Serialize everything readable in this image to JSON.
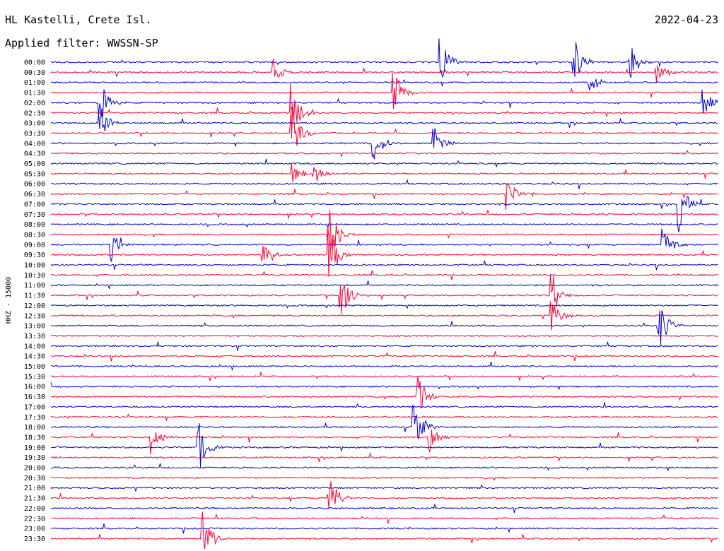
{
  "chart_data": {
    "type": "line",
    "title": "HL Kastelli, Crete Isl.",
    "subtitle": "Applied filter: WWSSN-SP",
    "date": "2022-04-23",
    "ylabel": "HHZ - 15000",
    "row_labels": [
      "00:00",
      "00:30",
      "01:00",
      "01:30",
      "02:00",
      "02:30",
      "03:00",
      "03:30",
      "04:00",
      "04:30",
      "05:00",
      "05:30",
      "06:00",
      "06:30",
      "07:00",
      "07:30",
      "08:00",
      "08:30",
      "09:00",
      "09:30",
      "10:00",
      "10:30",
      "11:00",
      "11:30",
      "12:00",
      "12:30",
      "13:00",
      "13:30",
      "14:00",
      "14:30",
      "15:00",
      "15:30",
      "16:00",
      "16:30",
      "17:00",
      "17:30",
      "18:00",
      "18:30",
      "19:00",
      "19:30",
      "20:00",
      "20:30",
      "21:00",
      "21:30",
      "22:00",
      "22:30",
      "23:00",
      "23:30"
    ],
    "trace_colors": [
      "#0000cc",
      "#ff0033"
    ],
    "grid": false,
    "events": [
      {
        "row": "00:00",
        "minute": 17.5,
        "amplitude": 2.5
      },
      {
        "row": "00:00",
        "minute": 23.5,
        "amplitude": 2.6
      },
      {
        "row": "00:00",
        "minute": 26.0,
        "amplitude": 2.2
      },
      {
        "row": "00:30",
        "minute": 10.0,
        "amplitude": 1.5
      },
      {
        "row": "00:30",
        "minute": 27.2,
        "amplitude": 1.5
      },
      {
        "row": "01:00",
        "minute": 24.2,
        "amplitude": 1.6
      },
      {
        "row": "01:30",
        "minute": 15.4,
        "amplitude": 2.5
      },
      {
        "row": "02:00",
        "minute": 2.2,
        "amplitude": 2.5
      },
      {
        "row": "02:00",
        "minute": 29.3,
        "amplitude": 2.0
      },
      {
        "row": "02:30",
        "minute": 10.8,
        "amplitude": 3.0
      },
      {
        "row": "03:00",
        "minute": 2.2,
        "amplitude": 1.8
      },
      {
        "row": "03:30",
        "minute": 10.8,
        "amplitude": 3.0
      },
      {
        "row": "04:00",
        "minute": 14.5,
        "amplitude": 2.0
      },
      {
        "row": "04:00",
        "minute": 17.2,
        "amplitude": 2.0
      },
      {
        "row": "05:30",
        "minute": 10.8,
        "amplitude": 1.6
      },
      {
        "row": "05:30",
        "minute": 11.8,
        "amplitude": 1.2
      },
      {
        "row": "06:30",
        "minute": 20.5,
        "amplitude": 1.8
      },
      {
        "row": "07:00",
        "minute": 28.2,
        "amplitude": 3.0
      },
      {
        "row": "08:30",
        "minute": 12.5,
        "amplitude": 3.0
      },
      {
        "row": "09:00",
        "minute": 2.7,
        "amplitude": 1.8
      },
      {
        "row": "09:00",
        "minute": 27.5,
        "amplitude": 2.2
      },
      {
        "row": "09:30",
        "minute": 12.5,
        "amplitude": 3.0
      },
      {
        "row": "09:30",
        "minute": 9.5,
        "amplitude": 2.0
      },
      {
        "row": "11:30",
        "minute": 13.0,
        "amplitude": 3.0
      },
      {
        "row": "11:30",
        "minute": 22.5,
        "amplitude": 2.5
      },
      {
        "row": "12:30",
        "minute": 22.5,
        "amplitude": 2.0
      },
      {
        "row": "13:00",
        "minute": 27.3,
        "amplitude": 3.0
      },
      {
        "row": "16:30",
        "minute": 16.5,
        "amplitude": 2.2
      },
      {
        "row": "18:00",
        "minute": 16.3,
        "amplitude": 3.0
      },
      {
        "row": "18:30",
        "minute": 4.5,
        "amplitude": 2.0
      },
      {
        "row": "18:30",
        "minute": 17.0,
        "amplitude": 2.0
      },
      {
        "row": "19:00",
        "minute": 6.6,
        "amplitude": 3.0
      },
      {
        "row": "21:30",
        "minute": 12.5,
        "amplitude": 2.5
      },
      {
        "row": "23:30",
        "minute": 6.8,
        "amplitude": 3.0
      }
    ]
  }
}
